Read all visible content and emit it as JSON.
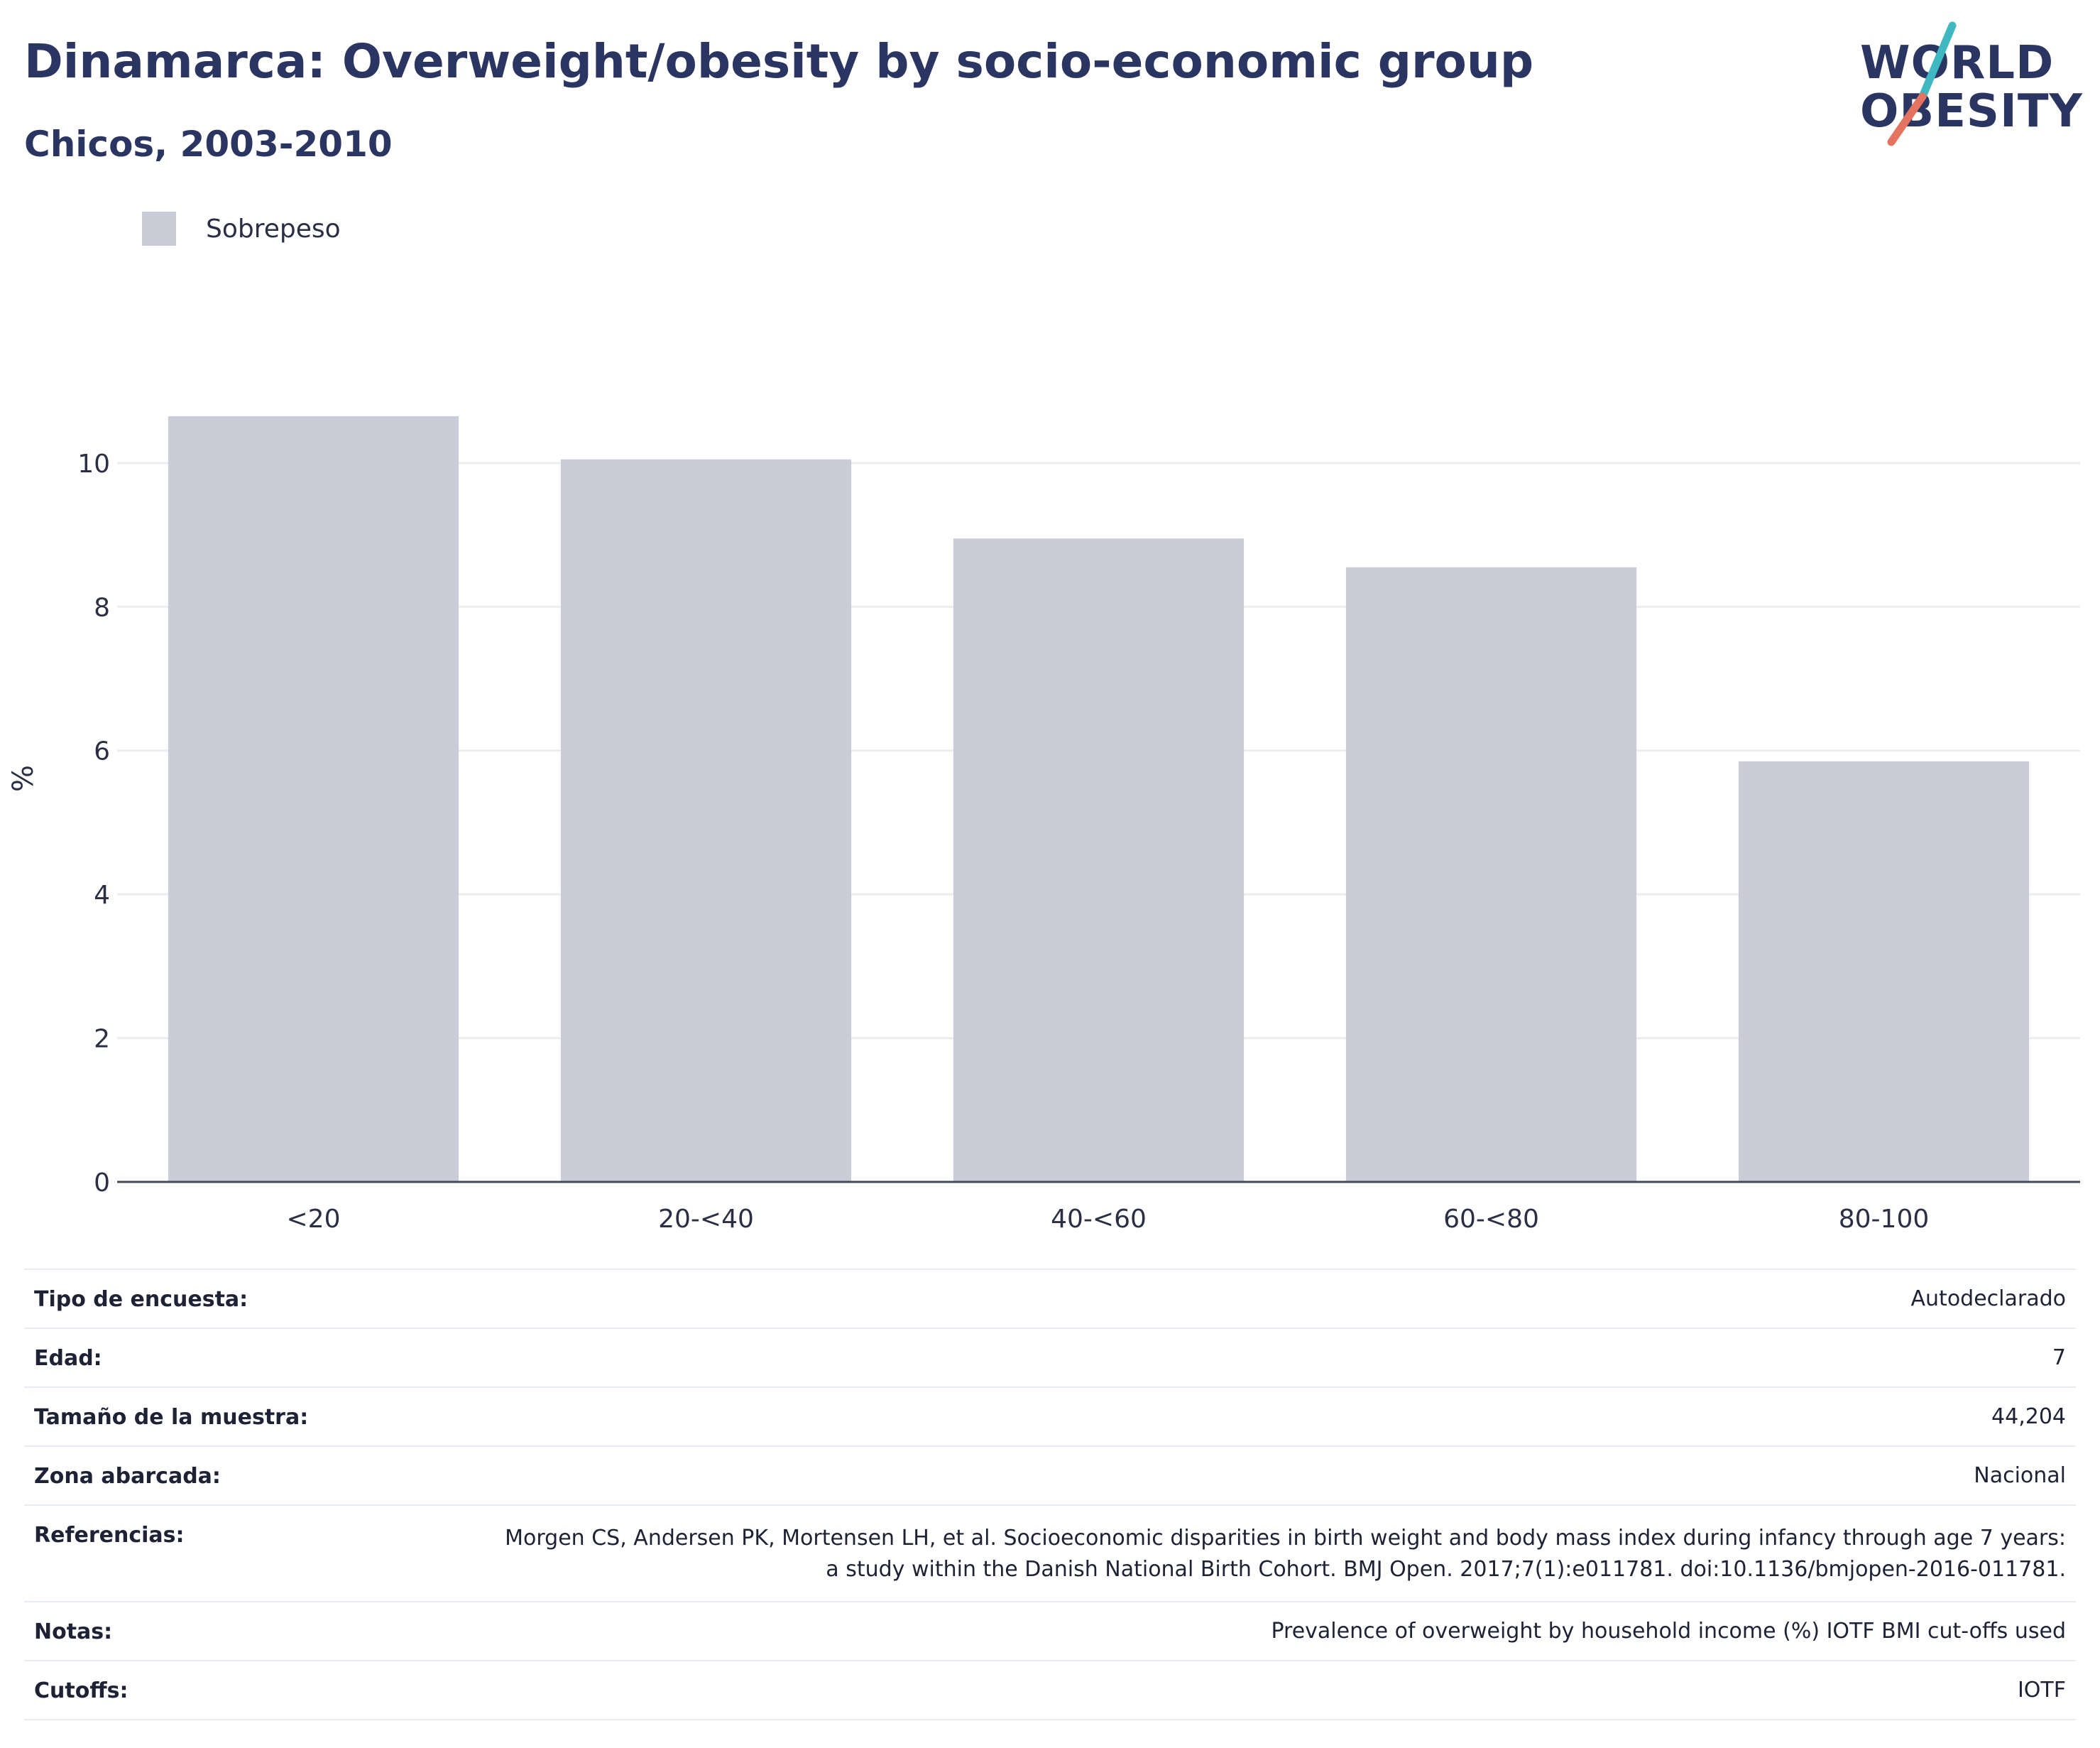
{
  "header": {
    "title": "Dinamarca: Overweight/obesity by socio-economic group",
    "subtitle": "Chicos, 2003-2010"
  },
  "logo": {
    "line1": "WORLD",
    "line2": "OBESITY",
    "accent_colors": [
      "#3fb8c2",
      "#e4735f"
    ]
  },
  "chart_data": {
    "type": "bar",
    "categories": [
      "<20",
      "20-<40",
      "40-<60",
      "60-<80",
      "80-100"
    ],
    "series": [
      {
        "name": "Sobrepeso",
        "values": [
          10.65,
          10.05,
          8.95,
          8.55,
          5.85
        ],
        "color": "#cacdd8"
      }
    ],
    "xlabel": "",
    "ylabel": "%",
    "ylim": [
      0,
      11.5
    ],
    "yticks": [
      0,
      2,
      4,
      6,
      8,
      10
    ],
    "grid": true,
    "legend_position": "top-left"
  },
  "info_table": [
    {
      "key": "Tipo de encuesta:",
      "value": "Autodeclarado"
    },
    {
      "key": "Edad:",
      "value": "7"
    },
    {
      "key": "Tamaño de la muestra:",
      "value": "44,204"
    },
    {
      "key": "Zona abarcada:",
      "value": "Nacional"
    },
    {
      "key": "Referencias:",
      "value": "Morgen CS, Andersen PK, Mortensen LH, et al. Socioeconomic disparities in birth weight and body mass index during infancy through age 7 years: a study within the Danish National Birth Cohort. BMJ Open. 2017;7(1):e011781. doi:10.1136/bmjopen-2016-011781."
    },
    {
      "key": "Notas:",
      "value": "Prevalence of overweight by household income (%) IOTF BMI cut-offs used"
    },
    {
      "key": "Cutoffs:",
      "value": "IOTF"
    }
  ]
}
